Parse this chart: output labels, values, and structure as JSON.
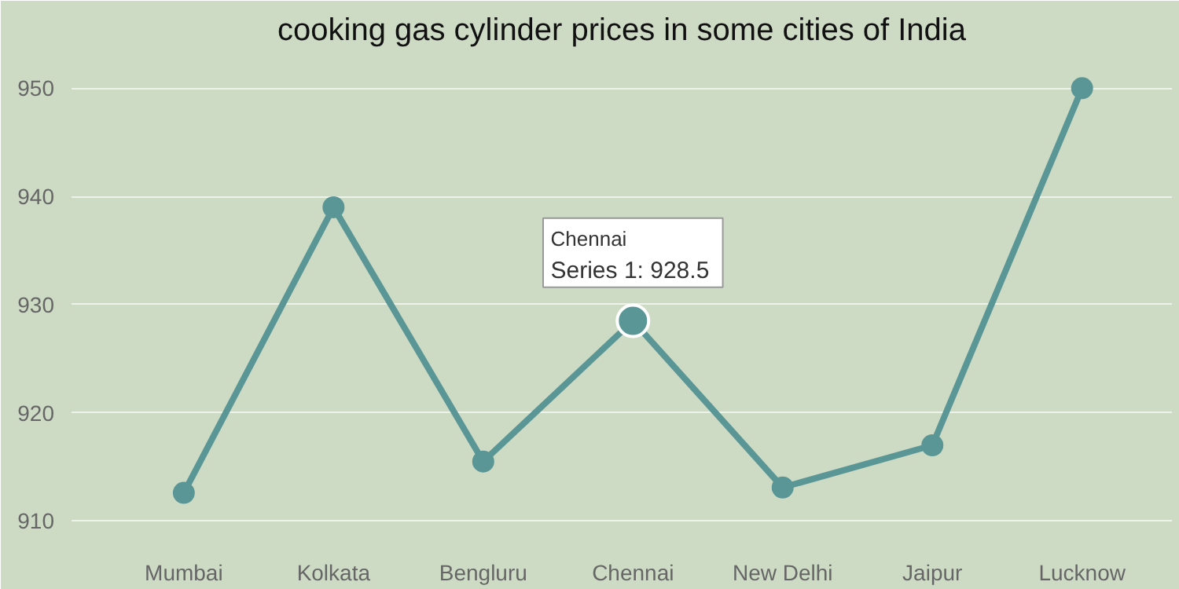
{
  "chart_data": {
    "type": "line",
    "title": "cooking gas cylinder prices in some cities of India",
    "categories": [
      "Mumbai",
      "Kolkata",
      "Bengluru",
      "Chennai",
      "New Delhi",
      "Jaipur",
      "Lucknow"
    ],
    "series": [
      {
        "color": "#5b9696",
        "values": [
          912.6,
          939,
          915.5,
          928.5,
          913.1,
          917,
          950
        ]
      }
    ],
    "ylim": [
      908,
      953
    ],
    "yticks": [
      910,
      920,
      930,
      940,
      950
    ],
    "grid": "y",
    "marker": "circle",
    "annotations": [
      "Chennai",
      "Series 1: 928.5"
    ]
  }
}
